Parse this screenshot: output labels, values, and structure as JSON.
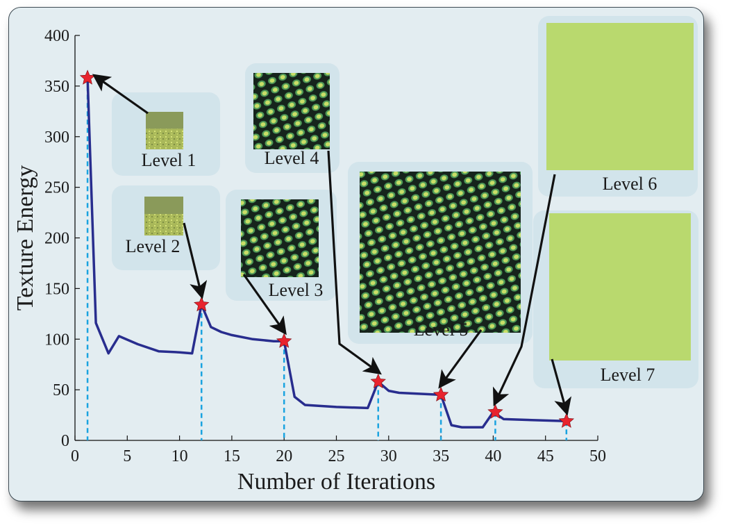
{
  "chart_data": {
    "type": "line",
    "xlabel": "Number of Iterations",
    "ylabel": "Texture Energy",
    "xlim": [
      0,
      50
    ],
    "ylim": [
      0,
      400
    ],
    "xticks": [
      0,
      5,
      10,
      15,
      20,
      25,
      30,
      35,
      40,
      45,
      50
    ],
    "yticks": [
      0,
      50,
      100,
      150,
      200,
      250,
      300,
      350,
      400
    ],
    "grid": false,
    "series": [
      {
        "color": "#282d8e",
        "x": [
          1.2,
          2,
          3.2,
          4.2,
          6,
          8,
          10,
          11.2,
          12.1,
          13,
          14,
          15,
          17,
          19,
          20,
          21,
          22,
          25,
          28,
          29,
          30,
          31,
          35,
          36,
          37,
          39,
          40,
          41,
          47
        ],
        "y": [
          358,
          116,
          86,
          103,
          95,
          88,
          87,
          86,
          134,
          112,
          107,
          104,
          100,
          98,
          98,
          43,
          35,
          33,
          32,
          58,
          49,
          47,
          45,
          15,
          13,
          13,
          28,
          21,
          19
        ]
      }
    ],
    "markers": [
      {
        "x": 1.2,
        "y": 358
      },
      {
        "x": 12.1,
        "y": 134
      },
      {
        "x": 20,
        "y": 98
      },
      {
        "x": 29,
        "y": 58
      },
      {
        "x": 35,
        "y": 45
      },
      {
        "x": 40.2,
        "y": 28
      },
      {
        "x": 47,
        "y": 19
      }
    ],
    "marker_color": "#e8242e",
    "dashed_color": "#1aa3e0",
    "annotations": [
      {
        "label": "Level 1",
        "thumbnail": "texture-coarse"
      },
      {
        "label": "Level 2",
        "thumbnail": "texture-coarse"
      },
      {
        "label": "Level 3",
        "thumbnail": "texture-cells"
      },
      {
        "label": "Level 4",
        "thumbnail": "texture-cells"
      },
      {
        "label": "Level 5",
        "thumbnail": "texture-cells"
      },
      {
        "label": "Level 6",
        "thumbnail": "texture-flat"
      },
      {
        "label": "Level 7",
        "thumbnail": "texture-flat"
      }
    ]
  }
}
